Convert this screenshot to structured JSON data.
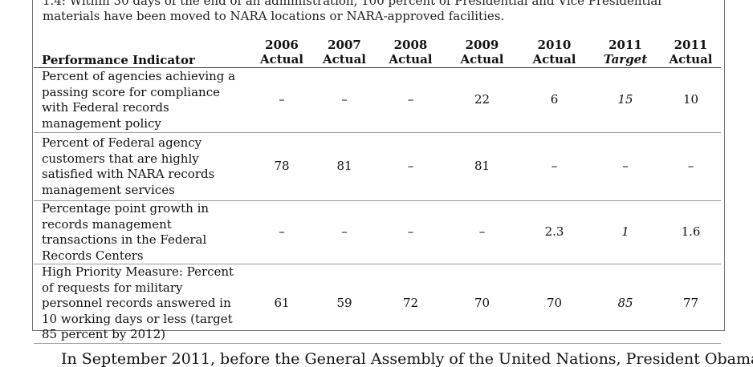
{
  "top_note": "1.4: Within 30 days of the end of an administration, 100 percent of Presidential and Vice Presidential materials have been moved to NARA locations or NARA-approved facilities.",
  "table": {
    "indicator_header": "Performance Indicator",
    "columns": [
      {
        "year": "2006",
        "kind": "Actual"
      },
      {
        "year": "2007",
        "kind": "Actual"
      },
      {
        "year": "2008",
        "kind": "Actual"
      },
      {
        "year": "2009",
        "kind": "Actual"
      },
      {
        "year": "2010",
        "kind": "Actual"
      },
      {
        "year": "2011",
        "kind": "Target"
      },
      {
        "year": "2011",
        "kind": "Actual"
      }
    ],
    "rows": [
      {
        "indicator": "Percent of agencies achieving a passing score for compliance with Federal records management policy",
        "values": [
          "–",
          "–",
          "–",
          "22",
          "6",
          "15",
          "10"
        ]
      },
      {
        "indicator": "Percent of Federal agency customers that are highly satisfied with NARA records management services",
        "values": [
          "78",
          "81",
          "–",
          "81",
          "–",
          "–",
          "–"
        ]
      },
      {
        "indicator": "Percentage point growth in records management transactions in the Federal Records Centers",
        "values": [
          "–",
          "–",
          "–",
          "–",
          "2.3",
          "1",
          "1.6"
        ]
      },
      {
        "indicator": "High Priority Measure: Percent of requests for military personnel records answered in 10 working days or less (target 85 percent by 2012)",
        "values": [
          "61",
          "59",
          "72",
          "70",
          "70",
          "85",
          "77"
        ]
      }
    ]
  },
  "bottom_text": "In September 2011, before the General Assembly of the United Nations, President Obama"
}
